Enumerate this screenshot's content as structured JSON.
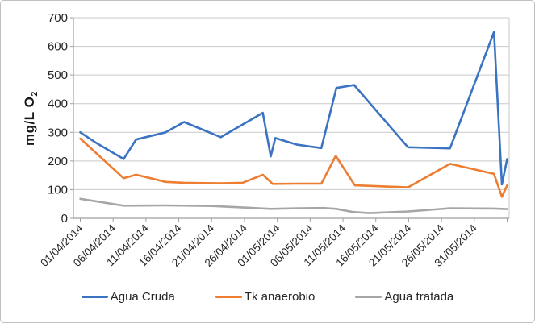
{
  "chart_data": {
    "type": "line",
    "title": "",
    "grid": "horizontal",
    "legend_position": "bottom",
    "y_axis": {
      "title_main": "mg/L O",
      "title_sub": "2",
      "min": 0,
      "max": 700,
      "tick_step": 100,
      "ticks": [
        0,
        100,
        200,
        300,
        400,
        500,
        600,
        700
      ]
    },
    "x_axis": {
      "range_days": [
        0,
        65
      ],
      "end_tick_day": 65,
      "ticks": [
        {
          "day": 0,
          "label": "01/04/2014"
        },
        {
          "day": 5,
          "label": "06/04/2014"
        },
        {
          "day": 10,
          "label": "11/04/2014"
        },
        {
          "day": 15,
          "label": "16/04/2014"
        },
        {
          "day": 20,
          "label": "21/04/2014"
        },
        {
          "day": 25,
          "label": "26/04/2014"
        },
        {
          "day": 30,
          "label": "01/05/2014"
        },
        {
          "day": 35,
          "label": "06/05/2014"
        },
        {
          "day": 40,
          "label": "11/05/2014"
        },
        {
          "day": 45,
          "label": "16/05/2014"
        },
        {
          "day": 50,
          "label": "21/05/2014"
        },
        {
          "day": 55,
          "label": "26/05/2014"
        },
        {
          "day": 60,
          "label": "31/05/2014"
        }
      ]
    },
    "series": [
      {
        "name": "Agua Cruda",
        "color": "#3A73C2",
        "points": [
          [
            0,
            300
          ],
          [
            2.5,
            262
          ],
          [
            6.6,
            207
          ],
          [
            8.5,
            275
          ],
          [
            13,
            300
          ],
          [
            15.8,
            336
          ],
          [
            21.4,
            283
          ],
          [
            27.8,
            368
          ],
          [
            29,
            216
          ],
          [
            29.7,
            280
          ],
          [
            33,
            257
          ],
          [
            36.7,
            245
          ],
          [
            39,
            455
          ],
          [
            41.7,
            465
          ],
          [
            46.5,
            338
          ],
          [
            49.9,
            248
          ],
          [
            56.3,
            244
          ],
          [
            63,
            650
          ],
          [
            64.2,
            118
          ],
          [
            65,
            207
          ]
        ]
      },
      {
        "name": "Tk anaerobio",
        "color": "#ED7D31",
        "points": [
          [
            0,
            278
          ],
          [
            6.6,
            140
          ],
          [
            8.5,
            152
          ],
          [
            13,
            127
          ],
          [
            15.8,
            124
          ],
          [
            21.4,
            122
          ],
          [
            24.7,
            124
          ],
          [
            27.8,
            152
          ],
          [
            29.3,
            120
          ],
          [
            33,
            121
          ],
          [
            36.7,
            121
          ],
          [
            38.9,
            218
          ],
          [
            41.8,
            115
          ],
          [
            49.9,
            108
          ],
          [
            56.3,
            190
          ],
          [
            63,
            155
          ],
          [
            64.2,
            75
          ],
          [
            65,
            115
          ]
        ]
      },
      {
        "name": "Agua tratada",
        "color": "#A6A6A6",
        "points": [
          [
            0,
            68
          ],
          [
            6.6,
            44
          ],
          [
            13,
            45
          ],
          [
            20,
            43
          ],
          [
            25.5,
            37
          ],
          [
            29,
            33
          ],
          [
            33,
            35
          ],
          [
            37,
            36
          ],
          [
            39,
            33
          ],
          [
            41.5,
            22
          ],
          [
            44,
            18
          ],
          [
            50,
            24
          ],
          [
            54,
            31
          ],
          [
            56.3,
            35
          ],
          [
            63,
            34
          ],
          [
            65,
            32
          ]
        ]
      }
    ],
    "style_colors": {
      "gridline": "#C9C9C9",
      "axis_line": "#9E9E9E",
      "plot_right_border": "#C9C9C9",
      "text": "#262626",
      "frame_border": "#BFBFBF",
      "background": "#FFFFFF"
    }
  }
}
